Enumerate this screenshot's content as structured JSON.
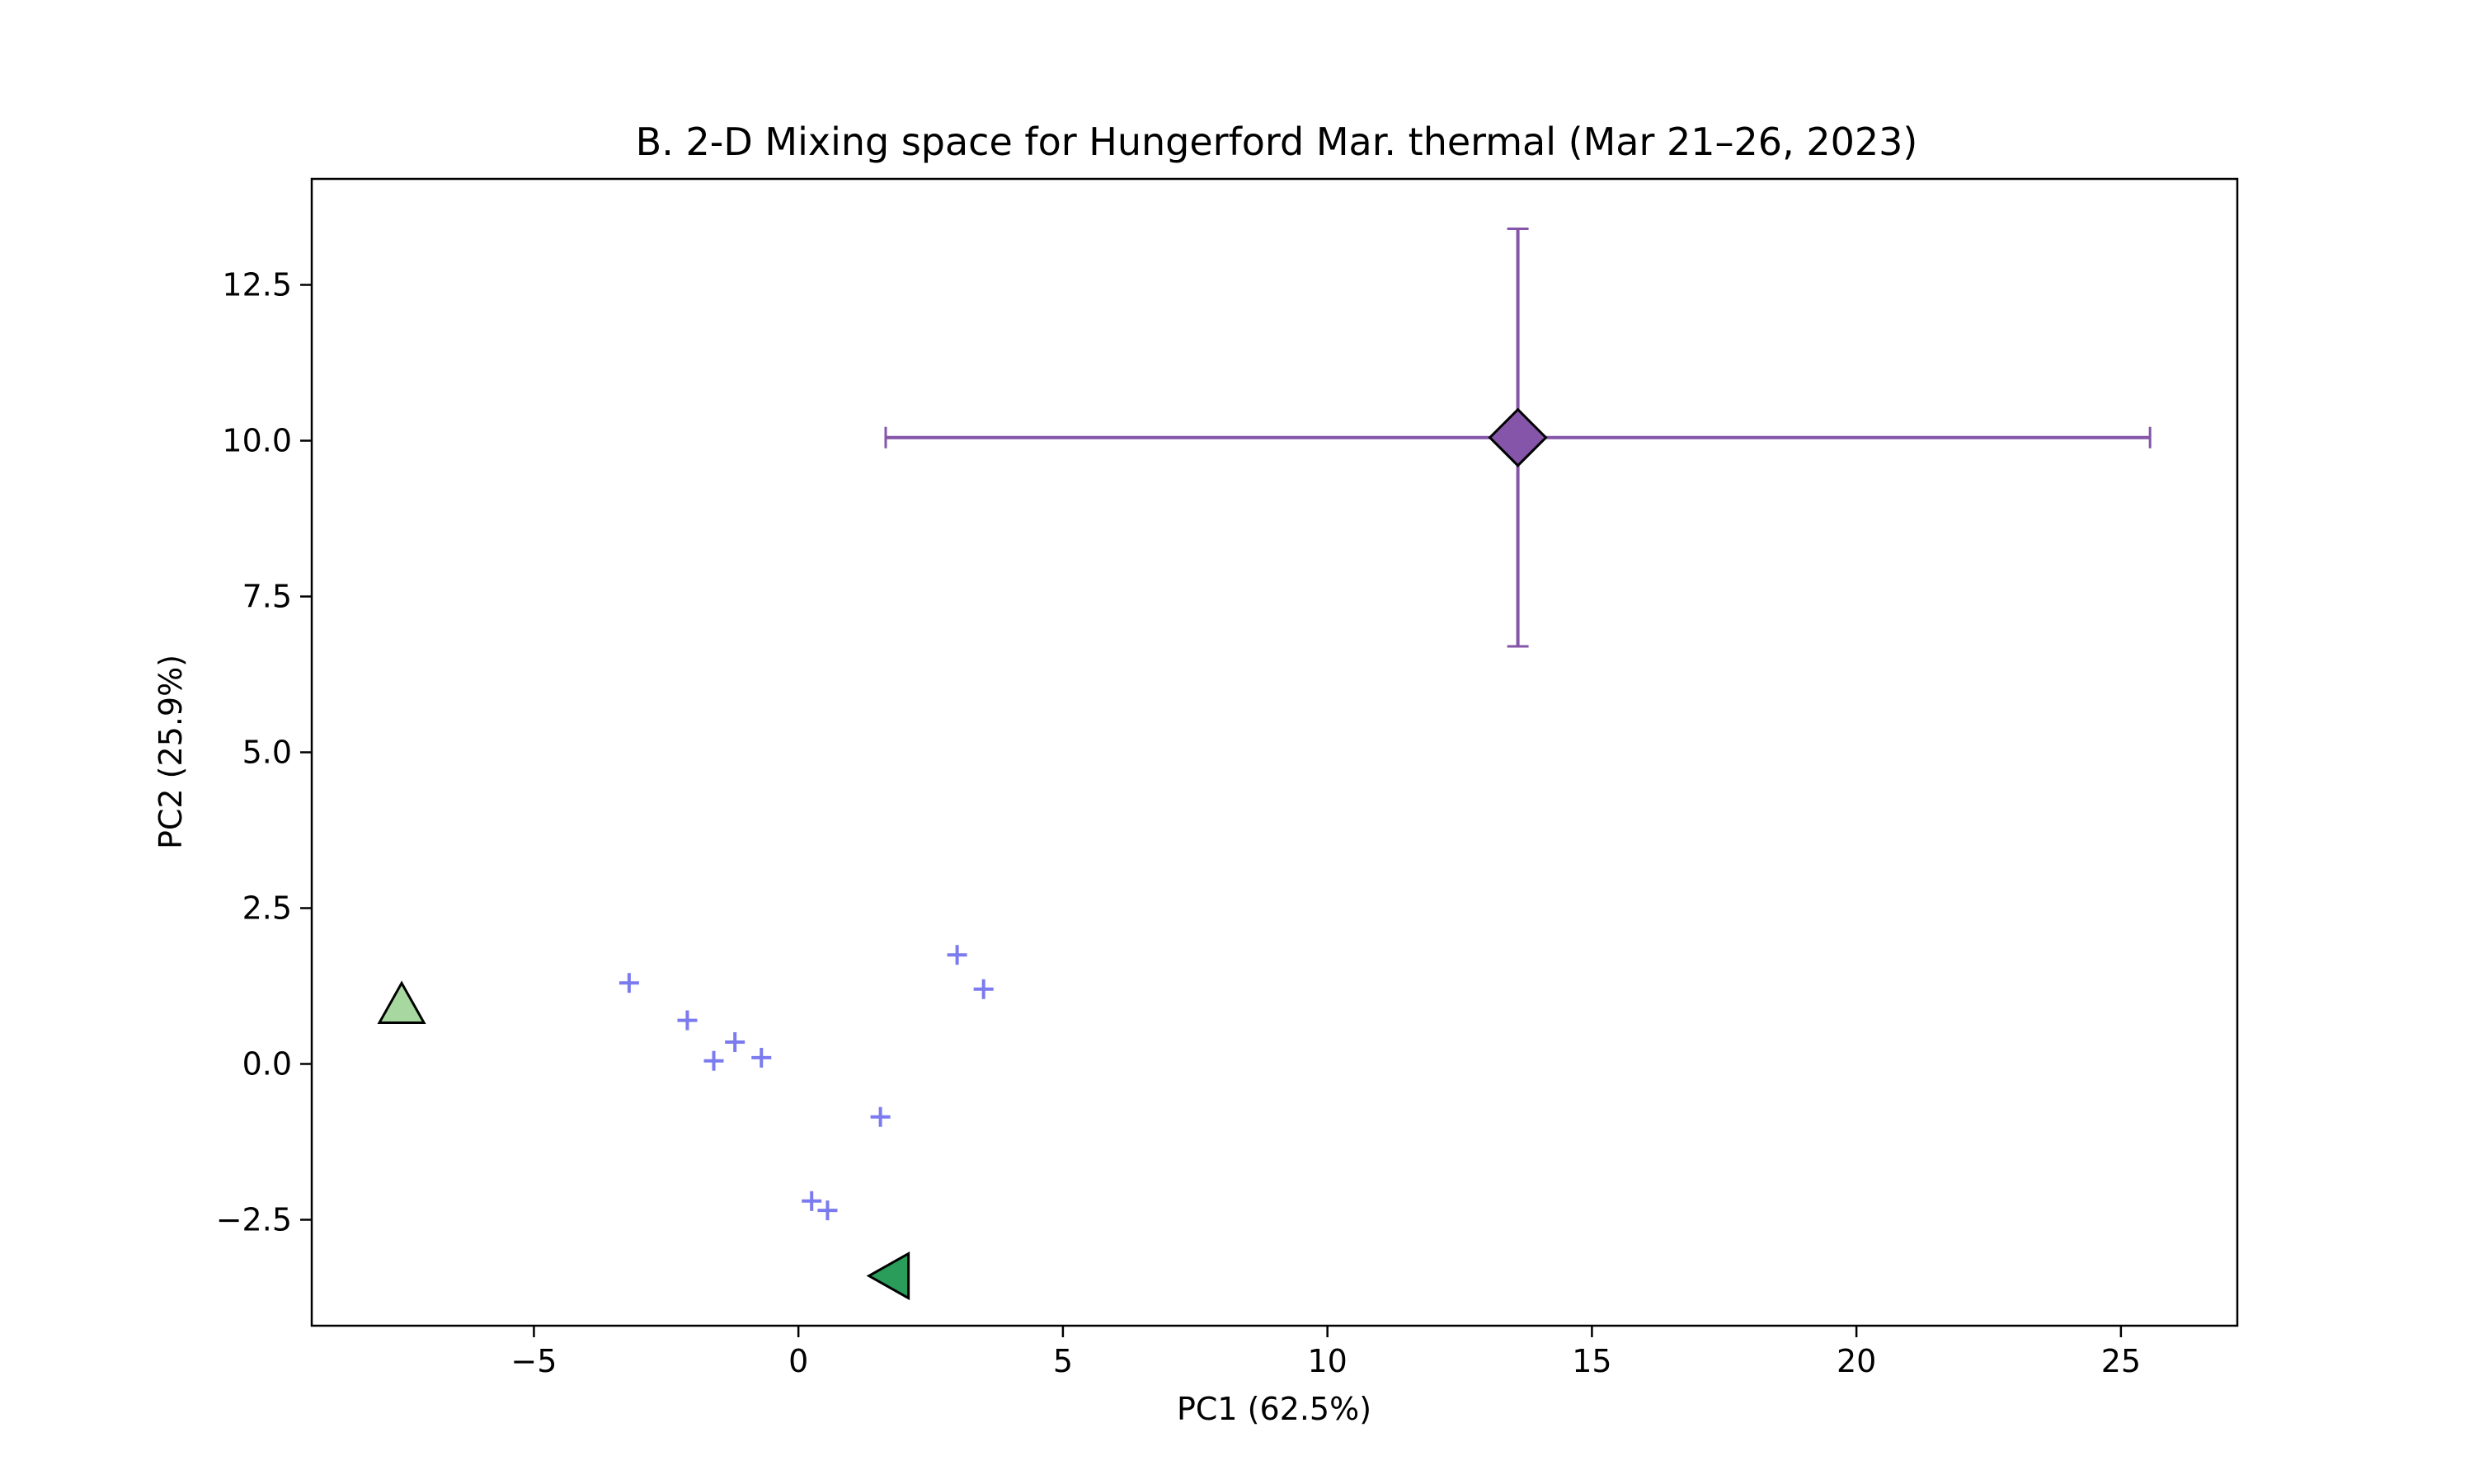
{
  "chart_data": {
    "type": "scatter",
    "title": "B. 2-D Mixing space for Hungerford Mar. thermal (Mar 21–26, 2023)",
    "xlabel": "PC1 (62.5%)",
    "ylabel": "PC2 (25.9%)",
    "xlim": [
      -9.2,
      27.2
    ],
    "ylim": [
      -4.2,
      14.2
    ],
    "xticks": [
      -5,
      0,
      5,
      10,
      15,
      20,
      25
    ],
    "xtick_labels": [
      "−5",
      "0",
      "5",
      "10",
      "15",
      "20",
      "25"
    ],
    "yticks": [
      -2.5,
      0.0,
      2.5,
      5.0,
      7.5,
      10.0,
      12.5
    ],
    "ytick_labels": [
      "−2.5",
      "0.0",
      "2.5",
      "5.0",
      "7.5",
      "10.0",
      "12.5"
    ],
    "grid": false,
    "series": [
      {
        "marker": "plus",
        "color": "#7b7bef",
        "points": [
          {
            "x": -3.2,
            "y": 1.3
          },
          {
            "x": -2.1,
            "y": 0.7
          },
          {
            "x": -1.6,
            "y": 0.05
          },
          {
            "x": -1.2,
            "y": 0.35
          },
          {
            "x": -0.7,
            "y": 0.1
          },
          {
            "x": 0.25,
            "y": -2.2
          },
          {
            "x": 0.55,
            "y": -2.35
          },
          {
            "x": 1.55,
            "y": -0.85
          },
          {
            "x": 3.0,
            "y": 1.75
          },
          {
            "x": 3.5,
            "y": 1.2
          }
        ]
      },
      {
        "marker": "triangle-up",
        "color": "#a6d8a0",
        "points": [
          {
            "x": -7.5,
            "y": 0.9
          }
        ]
      },
      {
        "marker": "triangle-left",
        "color": "#2a9d5a",
        "points": [
          {
            "x": 1.8,
            "y": -3.4
          }
        ]
      },
      {
        "marker": "diamond",
        "color": "#8455a8",
        "error_color": "#8455a8",
        "points": [
          {
            "x": 13.6,
            "y": 10.05,
            "xerr": [
              11.95,
              11.95
            ],
            "yerr": [
              3.35,
              3.35
            ]
          }
        ]
      }
    ]
  }
}
